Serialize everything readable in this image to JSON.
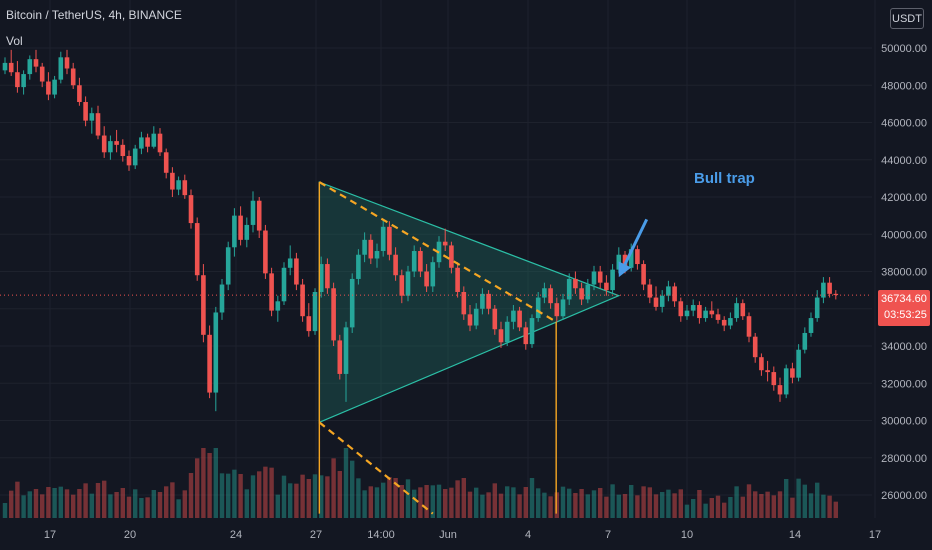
{
  "header": {
    "symbol_line": "Bitcoin / TetherUS, 4h, BINANCE",
    "volume_label": "Vol"
  },
  "currency_badge": "USDT",
  "annotation": {
    "text": "Bull trap",
    "color": "#4a9ce8"
  },
  "price_tag": {
    "price": "36734.60",
    "countdown": "03:53:25",
    "color": "#ef5350"
  },
  "colors": {
    "background": "#131722",
    "up": "#26a69a",
    "down": "#ef5350",
    "triangle_fill": "#1f6f63",
    "triangle_edge": "#2bbfa6",
    "dashed_line": "#f5a623",
    "vertical_marker": "#f5a623",
    "grid": "#1e222d"
  },
  "chart_data": {
    "type": "candlestick",
    "symbol": "Bitcoin / TetherUS",
    "interval": "4h",
    "exchange": "BINANCE",
    "y_axis": {
      "ticks": [
        "50000.00",
        "48000.00",
        "46000.00",
        "44000.00",
        "42000.00",
        "40000.00",
        "38000.00",
        "36000.00",
        "34000.00",
        "32000.00",
        "30000.00",
        "28000.00",
        "26000.00"
      ],
      "range": [
        25000,
        52500
      ]
    },
    "x_axis": {
      "ticks": [
        "17",
        "20",
        "24",
        "27",
        "14:00",
        "Jun",
        "4",
        "7",
        "10",
        "14",
        "17"
      ]
    },
    "current_price": 36734.6,
    "annotations": [
      {
        "type": "triangle",
        "points": [
          [
            50.7,
            42800
          ],
          [
            50.7,
            29900
          ],
          [
            99.0,
            36700
          ]
        ]
      },
      {
        "type": "dashed_line",
        "points": [
          [
            50.7,
            42800
          ],
          [
            88.9,
            35300
          ]
        ]
      },
      {
        "type": "dashed_line",
        "points": [
          [
            50.7,
            29900
          ],
          [
            69.0,
            25000
          ]
        ]
      },
      {
        "type": "vertical_marker",
        "points": [
          [
            50.7,
            42800
          ],
          [
            50.7,
            25000
          ]
        ]
      },
      {
        "type": "vertical_marker",
        "points": [
          [
            88.9,
            35300
          ],
          [
            88.9,
            25000
          ]
        ]
      },
      {
        "type": "arrow",
        "label": "Bull trap",
        "points": [
          [
            103.5,
            40800
          ],
          [
            99.0,
            37700
          ]
        ]
      }
    ],
    "candles": [
      [
        48800,
        49500,
        48600,
        49200
      ],
      [
        49200,
        49900,
        48500,
        48700
      ],
      [
        48700,
        49300,
        47600,
        47900
      ],
      [
        47900,
        48800,
        47500,
        48600
      ],
      [
        48600,
        49600,
        48300,
        49400
      ],
      [
        49400,
        49900,
        48700,
        49000
      ],
      [
        49000,
        49200,
        47900,
        48200
      ],
      [
        48200,
        48700,
        47200,
        47500
      ],
      [
        47500,
        48500,
        47300,
        48300
      ],
      [
        48300,
        49800,
        48100,
        49500
      ],
      [
        49500,
        49900,
        48600,
        48900
      ],
      [
        48900,
        49200,
        47800,
        48000
      ],
      [
        48000,
        48400,
        46900,
        47100
      ],
      [
        47100,
        47400,
        45800,
        46100
      ],
      [
        46100,
        46800,
        45400,
        46500
      ],
      [
        46500,
        46900,
        45100,
        45300
      ],
      [
        45300,
        45800,
        44100,
        44400
      ],
      [
        44400,
        45300,
        44000,
        45000
      ],
      [
        45000,
        45600,
        44400,
        44800
      ],
      [
        44800,
        45100,
        43900,
        44200
      ],
      [
        44200,
        44500,
        43400,
        43700
      ],
      [
        43700,
        44800,
        43500,
        44600
      ],
      [
        44600,
        45500,
        44300,
        45200
      ],
      [
        45200,
        45400,
        44400,
        44700
      ],
      [
        44700,
        45800,
        44600,
        45400
      ],
      [
        45400,
        45700,
        44200,
        44400
      ],
      [
        44400,
        44600,
        43000,
        43300
      ],
      [
        43300,
        43600,
        42000,
        42400
      ],
      [
        42400,
        43100,
        42100,
        42900
      ],
      [
        42900,
        43200,
        41900,
        42100
      ],
      [
        42100,
        42400,
        40300,
        40600
      ],
      [
        40600,
        40900,
        37500,
        37800
      ],
      [
        37800,
        38400,
        34200,
        34600
      ],
      [
        34600,
        35100,
        31200,
        31500
      ],
      [
        31500,
        36100,
        30500,
        35800
      ],
      [
        35800,
        37600,
        35400,
        37300
      ],
      [
        37300,
        39600,
        37000,
        39300
      ],
      [
        39300,
        41400,
        38800,
        41000
      ],
      [
        41000,
        41500,
        39400,
        39700
      ],
      [
        39700,
        40900,
        39300,
        40500
      ],
      [
        40500,
        42300,
        40100,
        41800
      ],
      [
        41800,
        42000,
        39800,
        40200
      ],
      [
        40200,
        40500,
        37600,
        37900
      ],
      [
        37900,
        38200,
        35600,
        35900
      ],
      [
        35900,
        36700,
        35300,
        36400
      ],
      [
        36400,
        38500,
        36200,
        38200
      ],
      [
        38200,
        39400,
        37800,
        38700
      ],
      [
        38700,
        39000,
        37000,
        37300
      ],
      [
        37300,
        37600,
        35300,
        35600
      ],
      [
        35600,
        36300,
        34500,
        34800
      ],
      [
        34800,
        37100,
        34600,
        36900
      ],
      [
        36900,
        38800,
        36600,
        38400
      ],
      [
        38400,
        38700,
        36800,
        37100
      ],
      [
        37100,
        37400,
        34000,
        34300
      ],
      [
        34300,
        34600,
        32200,
        32500
      ],
      [
        32500,
        35300,
        31000,
        35000
      ],
      [
        35000,
        37900,
        34700,
        37600
      ],
      [
        37600,
        39200,
        37300,
        38900
      ],
      [
        38900,
        40100,
        38500,
        39700
      ],
      [
        39700,
        40000,
        38400,
        38700
      ],
      [
        38700,
        39500,
        38200,
        39100
      ],
      [
        39100,
        40800,
        38800,
        40400
      ],
      [
        40400,
        40700,
        38600,
        38900
      ],
      [
        38900,
        39300,
        37500,
        37800
      ],
      [
        37800,
        38100,
        36300,
        36700
      ],
      [
        36700,
        38300,
        36400,
        38000
      ],
      [
        38000,
        39400,
        37700,
        39100
      ],
      [
        39100,
        39300,
        37700,
        38000
      ],
      [
        38000,
        38400,
        36900,
        37200
      ],
      [
        37200,
        38800,
        36900,
        38500
      ],
      [
        38500,
        39900,
        38200,
        39600
      ],
      [
        39600,
        40300,
        39100,
        39400
      ],
      [
        39400,
        39600,
        37900,
        38200
      ],
      [
        38200,
        38500,
        36600,
        36900
      ],
      [
        36900,
        37200,
        35400,
        35700
      ],
      [
        35700,
        36200,
        34800,
        35100
      ],
      [
        35100,
        36300,
        34900,
        36000
      ],
      [
        36000,
        37100,
        35700,
        36800
      ],
      [
        36800,
        37000,
        35700,
        36000
      ],
      [
        36000,
        36200,
        34600,
        34900
      ],
      [
        34900,
        35300,
        33900,
        34200
      ],
      [
        34200,
        35600,
        34000,
        35300
      ],
      [
        35300,
        36200,
        34900,
        35900
      ],
      [
        35900,
        36100,
        34800,
        35000
      ],
      [
        35000,
        35300,
        33800,
        34100
      ],
      [
        34100,
        35700,
        33900,
        35500
      ],
      [
        35500,
        36900,
        35300,
        36600
      ],
      [
        36600,
        37400,
        36300,
        37100
      ],
      [
        37100,
        37300,
        36000,
        36300
      ],
      [
        36300,
        36600,
        35300,
        35600
      ],
      [
        35600,
        36800,
        35400,
        36500
      ],
      [
        36500,
        37900,
        36200,
        37600
      ],
      [
        37600,
        38000,
        36800,
        37100
      ],
      [
        37100,
        37400,
        36200,
        36500
      ],
      [
        36500,
        37600,
        36300,
        37300
      ],
      [
        37300,
        38300,
        37000,
        38000
      ],
      [
        38000,
        38300,
        37100,
        37400
      ],
      [
        37400,
        37800,
        36700,
        37000
      ],
      [
        37000,
        38400,
        36800,
        38100
      ],
      [
        38100,
        39300,
        37900,
        38900
      ],
      [
        38900,
        39100,
        37900,
        38200
      ],
      [
        38200,
        39500,
        38000,
        39200
      ],
      [
        39200,
        39400,
        38100,
        38400
      ],
      [
        38400,
        38600,
        37000,
        37300
      ],
      [
        37300,
        37600,
        36300,
        36600
      ],
      [
        36600,
        37200,
        35900,
        36100
      ],
      [
        36100,
        37000,
        35800,
        36700
      ],
      [
        36700,
        37500,
        36400,
        37200
      ],
      [
        37200,
        37400,
        36100,
        36400
      ],
      [
        36400,
        36600,
        35300,
        35600
      ],
      [
        35600,
        36200,
        35400,
        35900
      ],
      [
        35900,
        36500,
        35600,
        36200
      ],
      [
        36200,
        36400,
        35200,
        35500
      ],
      [
        35500,
        36100,
        35300,
        35900
      ],
      [
        35900,
        36400,
        35500,
        35700
      ],
      [
        35700,
        36000,
        35200,
        35400
      ],
      [
        35400,
        35600,
        34800,
        35100
      ],
      [
        35100,
        35800,
        34900,
        35500
      ],
      [
        35500,
        36600,
        35300,
        36300
      ],
      [
        36300,
        36500,
        35400,
        35600
      ],
      [
        35600,
        35800,
        34200,
        34500
      ],
      [
        34500,
        34700,
        33100,
        33400
      ],
      [
        33400,
        33600,
        32400,
        32700
      ],
      [
        32700,
        33200,
        32100,
        32600
      ],
      [
        32600,
        32900,
        31600,
        31900
      ],
      [
        31900,
        32300,
        31000,
        31400
      ],
      [
        31400,
        33000,
        31200,
        32800
      ],
      [
        32800,
        33100,
        32000,
        32300
      ],
      [
        32300,
        34100,
        32100,
        33800
      ],
      [
        33800,
        35000,
        33600,
        34700
      ],
      [
        34700,
        35800,
        34500,
        35500
      ],
      [
        35500,
        37000,
        35300,
        36600
      ],
      [
        36600,
        37700,
        36300,
        37400
      ],
      [
        37400,
        37700,
        36600,
        36800
      ],
      [
        36800,
        37000,
        36500,
        36734.6
      ]
    ]
  }
}
